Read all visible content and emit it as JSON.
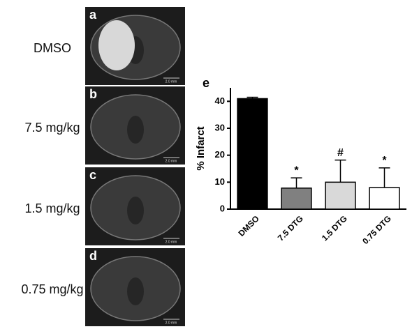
{
  "panels": [
    {
      "letter": "a",
      "label": "DMSO",
      "scale_bar": "2.0 mm"
    },
    {
      "letter": "b",
      "label": "7.5 mg/kg",
      "scale_bar": "2.0 mm"
    },
    {
      "letter": "c",
      "label": "1.5 mg/kg",
      "scale_bar": "2.0 mm"
    },
    {
      "letter": "d",
      "label": "0.75 mg/kg",
      "scale_bar": "2.0 mm"
    }
  ],
  "chart_data": {
    "type": "bar",
    "panel_letter": "e",
    "y_label": "% Infarct",
    "categories": [
      "DMSO",
      "7.5 DTG",
      "1.5 DTG",
      "0.75 DTG"
    ],
    "values": [
      41,
      7.8,
      10,
      8
    ],
    "errors": [
      0.5,
      3.8,
      8.2,
      7.3
    ],
    "colors": [
      "#000000",
      "#808080",
      "#d9d9d9",
      "#ffffff"
    ],
    "significance": [
      null,
      "*",
      "#",
      "*"
    ],
    "ylim": [
      0,
      45
    ],
    "yticks": [
      0,
      10,
      20,
      30,
      40
    ]
  }
}
